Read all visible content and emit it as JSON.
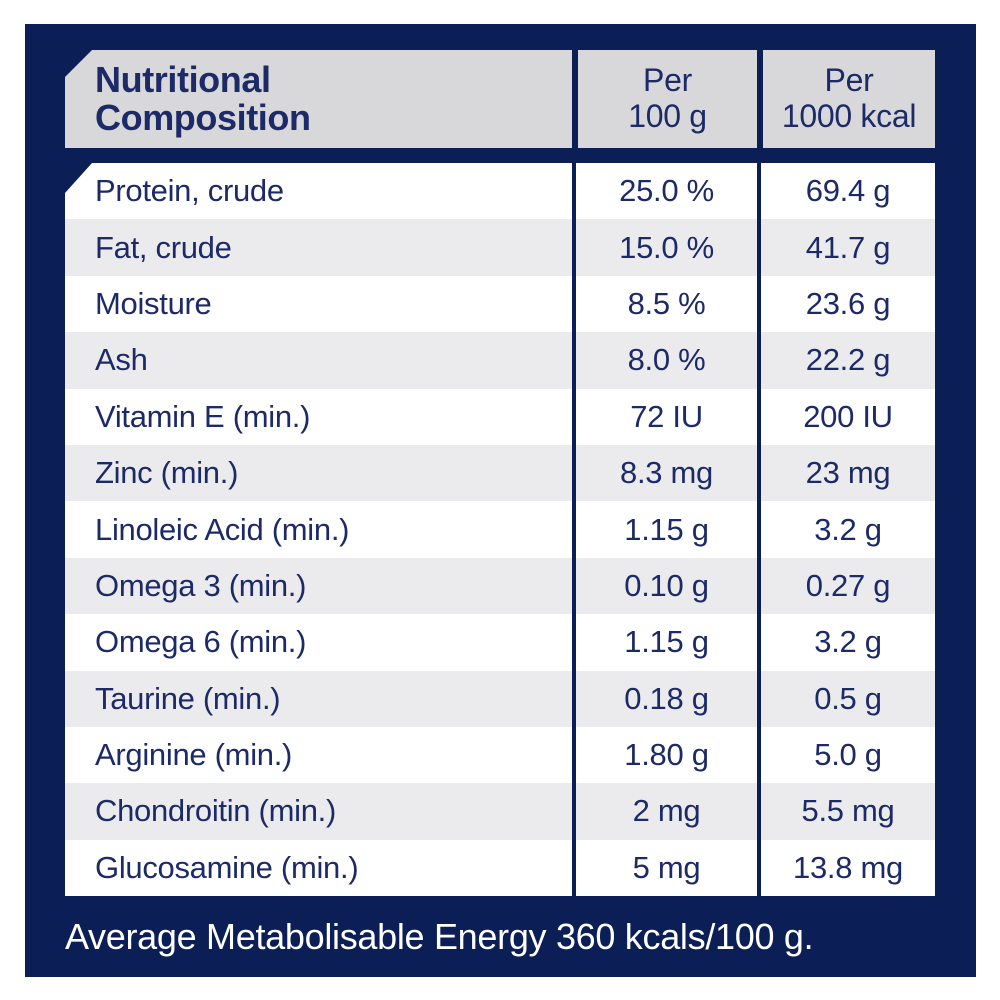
{
  "table": {
    "header": {
      "title_line1": "Nutritional",
      "title_line2": "Composition",
      "col2_line1": "Per",
      "col2_line2": "100 g",
      "col3_line1": "Per",
      "col3_line2": "1000 kcal"
    },
    "rows": [
      {
        "label": "Protein, crude",
        "per_100g": "25.0 %",
        "per_1000kcal": "69.4 g"
      },
      {
        "label": "Fat, crude",
        "per_100g": "15.0 %",
        "per_1000kcal": "41.7 g"
      },
      {
        "label": "Moisture",
        "per_100g": "8.5 %",
        "per_1000kcal": "23.6 g"
      },
      {
        "label": "Ash",
        "per_100g": "8.0 %",
        "per_1000kcal": "22.2 g"
      },
      {
        "label": "Vitamin E (min.)",
        "per_100g": "72 IU",
        "per_1000kcal": "200 IU"
      },
      {
        "label": "Zinc (min.)",
        "per_100g": "8.3 mg",
        "per_1000kcal": "23 mg"
      },
      {
        "label": "Linoleic Acid (min.)",
        "per_100g": "1.15 g",
        "per_1000kcal": "3.2 g"
      },
      {
        "label": "Omega 3 (min.)",
        "per_100g": "0.10 g",
        "per_1000kcal": "0.27 g"
      },
      {
        "label": "Omega 6 (min.)",
        "per_100g": "1.15 g",
        "per_1000kcal": "3.2 g"
      },
      {
        "label": "Taurine (min.)",
        "per_100g": "0.18 g",
        "per_1000kcal": "0.5 g"
      },
      {
        "label": "Arginine (min.)",
        "per_100g": "1.80 g",
        "per_1000kcal": "5.0 g"
      },
      {
        "label": "Chondroitin (min.)",
        "per_100g": "2 mg",
        "per_1000kcal": "5.5 mg"
      },
      {
        "label": "Glucosamine (min.)",
        "per_100g": "5 mg",
        "per_1000kcal": "13.8 mg"
      }
    ],
    "footer": "Average Metabolisable Energy 360 kcals/100 g."
  },
  "colors": {
    "panel_navy": "#0b1e56",
    "header_gray": "#d8d8da",
    "row_white": "#ffffff",
    "row_alt_gray": "#ebebee",
    "text_navy": "#1c2a67",
    "footer_text": "#ffffff"
  }
}
